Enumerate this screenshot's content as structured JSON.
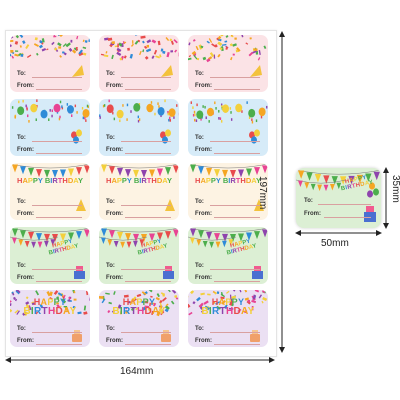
{
  "sheet": {
    "rows": [
      {
        "theme": "confetti",
        "bg": "#fbe3e6",
        "birthday": false
      },
      {
        "theme": "balloons",
        "bg": "#d6ebf8",
        "birthday": false
      },
      {
        "theme": "bunting",
        "bg": "#fdf3e3",
        "birthday": true
      },
      {
        "theme": "bunting-cake",
        "bg": "#dcefd4",
        "birthday": true
      },
      {
        "theme": "streamers",
        "bg": "#ebe0f3",
        "birthday": true
      }
    ],
    "columns": 3
  },
  "label_text": {
    "to": "To:",
    "from": "From:"
  },
  "birthday_text": {
    "happy": "HAPPY",
    "word": "BIRTHDAY"
  },
  "birthday_colors": [
    "#e84c4c",
    "#f5a623",
    "#f3d03c",
    "#4cae4c",
    "#2e8bd8",
    "#8e44ad",
    "#e84393"
  ],
  "dimensions": {
    "sheet_width": "164mm",
    "sheet_height": "197mm",
    "label_width": "50mm",
    "label_height": "35mm"
  }
}
